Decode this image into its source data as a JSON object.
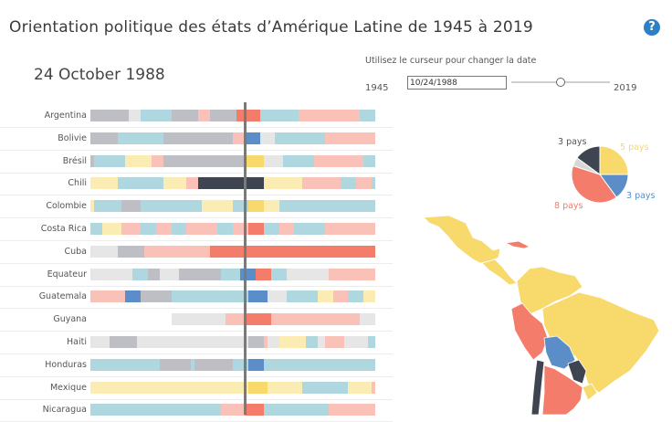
{
  "header": {
    "title": "Orientation politique des états d’Amérique Latine de 1945 à 2019",
    "help_icon": "question-circle-icon",
    "help_glyph": "?"
  },
  "current_date_display": "24 October 1988",
  "slider": {
    "hint": "Utilisez le curseur pour changer la date",
    "start_year": "1945",
    "end_year": "2019",
    "value": "10/24/1988",
    "position_fraction": 0.589
  },
  "colors": {
    "left": "#f47c6a",
    "left_light": "#f9c1b8",
    "center_left": "#f8d96b",
    "center_left_light": "#fbecb3",
    "right": "#5b8ec8",
    "right_light": "#aed7e0",
    "dictatorship": "#3f4451",
    "dictatorship_light": "#bdbfc4",
    "other_light": "#e6e6e6"
  },
  "timeline": {
    "start": 1945,
    "end": 2019,
    "current": 1988.81
  },
  "countries": [
    {
      "name": "Argentina",
      "segments": [
        [
          1945,
          1955,
          "dictatorship_light"
        ],
        [
          1955,
          1958,
          "other_light"
        ],
        [
          1958,
          1966,
          "right_light"
        ],
        [
          1966,
          1973,
          "dictatorship_light"
        ],
        [
          1973,
          1976,
          "left_light"
        ],
        [
          1976,
          1983,
          "dictatorship_light"
        ],
        [
          1983,
          1989,
          "left"
        ],
        [
          1989,
          1999,
          "right_light"
        ],
        [
          1999,
          2003,
          "left_light"
        ],
        [
          2003,
          2015,
          "left_light"
        ],
        [
          2015,
          2019,
          "right_light"
        ]
      ]
    },
    {
      "name": "Bolivie",
      "segments": [
        [
          1945,
          1952,
          "dictatorship_light"
        ],
        [
          1952,
          1964,
          "right_light"
        ],
        [
          1964,
          1982,
          "dictatorship_light"
        ],
        [
          1982,
          1985,
          "left_light"
        ],
        [
          1985,
          1989,
          "right"
        ],
        [
          1989,
          1993,
          "other_light"
        ],
        [
          1993,
          2006,
          "right_light"
        ],
        [
          2006,
          2019,
          "left_light"
        ]
      ]
    },
    {
      "name": "Brésil",
      "segments": [
        [
          1945,
          1946,
          "dictatorship_light"
        ],
        [
          1946,
          1954,
          "right_light"
        ],
        [
          1954,
          1961,
          "center_left_light"
        ],
        [
          1961,
          1964,
          "left_light"
        ],
        [
          1964,
          1985,
          "dictatorship_light"
        ],
        [
          1985,
          1990,
          "center_left"
        ],
        [
          1990,
          1995,
          "other_light"
        ],
        [
          1995,
          2003,
          "right_light"
        ],
        [
          2003,
          2016,
          "left_light"
        ],
        [
          2016,
          2019,
          "right_light"
        ]
      ]
    },
    {
      "name": "Chili",
      "segments": [
        [
          1945,
          1952,
          "center_left_light"
        ],
        [
          1952,
          1964,
          "right_light"
        ],
        [
          1964,
          1970,
          "center_left_light"
        ],
        [
          1970,
          1973,
          "left_light"
        ],
        [
          1973,
          1990,
          "dictatorship"
        ],
        [
          1990,
          2000,
          "center_left_light"
        ],
        [
          2000,
          2010,
          "left_light"
        ],
        [
          2010,
          2014,
          "right_light"
        ],
        [
          2014,
          2018,
          "left_light"
        ],
        [
          2018,
          2019,
          "right_light"
        ]
      ]
    },
    {
      "name": "Colombie",
      "segments": [
        [
          1945,
          1946,
          "center_left_light"
        ],
        [
          1946,
          1953,
          "right_light"
        ],
        [
          1953,
          1958,
          "dictatorship_light"
        ],
        [
          1958,
          1974,
          "right_light"
        ],
        [
          1974,
          1982,
          "center_left_light"
        ],
        [
          1982,
          1986,
          "right_light"
        ],
        [
          1986,
          1990,
          "center_left"
        ],
        [
          1990,
          1994,
          "center_left_light"
        ],
        [
          1994,
          2019,
          "right_light"
        ]
      ]
    },
    {
      "name": "Costa Rica",
      "segments": [
        [
          1945,
          1948,
          "right_light"
        ],
        [
          1948,
          1953,
          "center_left_light"
        ],
        [
          1953,
          1958,
          "left_light"
        ],
        [
          1958,
          1962,
          "right_light"
        ],
        [
          1962,
          1966,
          "left_light"
        ],
        [
          1966,
          1970,
          "right_light"
        ],
        [
          1970,
          1978,
          "left_light"
        ],
        [
          1978,
          1982,
          "right_light"
        ],
        [
          1982,
          1986,
          "left_light"
        ],
        [
          1986,
          1990,
          "left"
        ],
        [
          1990,
          1994,
          "right_light"
        ],
        [
          1994,
          1998,
          "left_light"
        ],
        [
          1998,
          2006,
          "right_light"
        ],
        [
          2006,
          2019,
          "left_light"
        ]
      ]
    },
    {
      "name": "Cuba",
      "segments": [
        [
          1945,
          1952,
          "other_light"
        ],
        [
          1952,
          1959,
          "dictatorship_light"
        ],
        [
          1959,
          1976,
          "left_light"
        ],
        [
          1976,
          2019,
          "left"
        ]
      ]
    },
    {
      "name": "Equateur",
      "segments": [
        [
          1945,
          1948,
          "other_light"
        ],
        [
          1948,
          1956,
          "other_light"
        ],
        [
          1956,
          1960,
          "right_light"
        ],
        [
          1960,
          1963,
          "dictatorship_light"
        ],
        [
          1963,
          1968,
          "other_light"
        ],
        [
          1968,
          1972,
          "dictatorship_light"
        ],
        [
          1972,
          1979,
          "dictatorship_light"
        ],
        [
          1979,
          1984,
          "right_light"
        ],
        [
          1984,
          1988,
          "right"
        ],
        [
          1988,
          1992,
          "left"
        ],
        [
          1992,
          1996,
          "right_light"
        ],
        [
          1996,
          2007,
          "other_light"
        ],
        [
          2007,
          2019,
          "left_light"
        ]
      ]
    },
    {
      "name": "Guatemala",
      "segments": [
        [
          1945,
          1954,
          "left_light"
        ],
        [
          1954,
          1958,
          "right"
        ],
        [
          1958,
          1966,
          "dictatorship_light"
        ],
        [
          1966,
          1970,
          "right_light"
        ],
        [
          1970,
          1986,
          "right_light"
        ],
        [
          1986,
          1991,
          "right"
        ],
        [
          1991,
          1996,
          "other_light"
        ],
        [
          1996,
          2004,
          "right_light"
        ],
        [
          2004,
          2008,
          "center_left_light"
        ],
        [
          2008,
          2012,
          "left_light"
        ],
        [
          2012,
          2016,
          "right_light"
        ],
        [
          2016,
          2019,
          "center_left_light"
        ]
      ]
    },
    {
      "name": "Guyana",
      "segments": [
        [
          1966,
          1980,
          "other_light"
        ],
        [
          1980,
          1985,
          "left_light"
        ],
        [
          1985,
          1992,
          "left"
        ],
        [
          1992,
          2015,
          "left_light"
        ],
        [
          2015,
          2019,
          "other_light"
        ]
      ]
    },
    {
      "name": "Haiti",
      "segments": [
        [
          1945,
          1946,
          "other_light"
        ],
        [
          1946,
          1950,
          "other_light"
        ],
        [
          1950,
          1957,
          "dictatorship_light"
        ],
        [
          1957,
          1986,
          "other_light"
        ],
        [
          1986,
          1990,
          "dictatorship_light"
        ],
        [
          1990,
          1991,
          "left_light"
        ],
        [
          1991,
          1994,
          "other_light"
        ],
        [
          1994,
          2001,
          "center_left_light"
        ],
        [
          2001,
          2004,
          "right_light"
        ],
        [
          2004,
          2006,
          "other_light"
        ],
        [
          2006,
          2011,
          "left_light"
        ],
        [
          2011,
          2017,
          "other_light"
        ],
        [
          2017,
          2019,
          "right_light"
        ]
      ]
    },
    {
      "name": "Honduras",
      "segments": [
        [
          1945,
          1957,
          "right_light"
        ],
        [
          1957,
          1963,
          "right_light"
        ],
        [
          1963,
          1971,
          "dictatorship_light"
        ],
        [
          1971,
          1972,
          "right_light"
        ],
        [
          1972,
          1982,
          "dictatorship_light"
        ],
        [
          1982,
          1986,
          "right_light"
        ],
        [
          1986,
          1990,
          "right"
        ],
        [
          1990,
          2019,
          "right_light"
        ]
      ]
    },
    {
      "name": "Mexique",
      "segments": [
        [
          1945,
          1986,
          "center_left_light"
        ],
        [
          1986,
          1991,
          "center_left"
        ],
        [
          1991,
          2000,
          "center_left_light"
        ],
        [
          2000,
          2012,
          "right_light"
        ],
        [
          2012,
          2018,
          "center_left_light"
        ],
        [
          2018,
          2019,
          "left_light"
        ]
      ]
    },
    {
      "name": "Nicaragua",
      "segments": [
        [
          1945,
          1979,
          "right_light"
        ],
        [
          1979,
          1985,
          "left_light"
        ],
        [
          1985,
          1990,
          "left"
        ],
        [
          1990,
          2007,
          "right_light"
        ],
        [
          2007,
          2019,
          "left_light"
        ]
      ]
    }
  ],
  "pie": {
    "labels": [
      {
        "text": "3 pays",
        "color": "#555555",
        "key": "dictatorship"
      },
      {
        "text": "5 pays",
        "color": "#f8d96b",
        "key": "center_left"
      },
      {
        "text": "3 pays",
        "color": "#5b8ec8",
        "key": "right"
      },
      {
        "text": "8 pays",
        "color": "#f47c6a",
        "key": "left"
      }
    ],
    "slices": [
      {
        "key": "center_left",
        "count": 5,
        "color": "#f8d96b"
      },
      {
        "key": "right",
        "count": 3,
        "color": "#5b8ec8"
      },
      {
        "key": "left",
        "count": 8,
        "color": "#f47c6a"
      },
      {
        "key": "other",
        "count": 1,
        "color": "#d8d8d8"
      },
      {
        "key": "dictatorship",
        "count": 3,
        "color": "#3f4451"
      }
    ]
  },
  "map": {
    "regions": [
      {
        "name": "mexico",
        "color": "#f8d96b"
      },
      {
        "name": "cuba",
        "color": "#f47c6a"
      },
      {
        "name": "central-america",
        "color": "#f8d96b"
      },
      {
        "name": "colombia-venezuela",
        "color": "#f8d96b"
      },
      {
        "name": "peru",
        "color": "#f47c6a"
      },
      {
        "name": "brazil",
        "color": "#f8d96b"
      },
      {
        "name": "bolivia",
        "color": "#5b8ec8"
      },
      {
        "name": "paraguay",
        "color": "#3f4451"
      },
      {
        "name": "chile",
        "color": "#3f4451"
      },
      {
        "name": "argentina",
        "color": "#f47c6a"
      },
      {
        "name": "uruguay",
        "color": "#f8d96b"
      }
    ]
  }
}
